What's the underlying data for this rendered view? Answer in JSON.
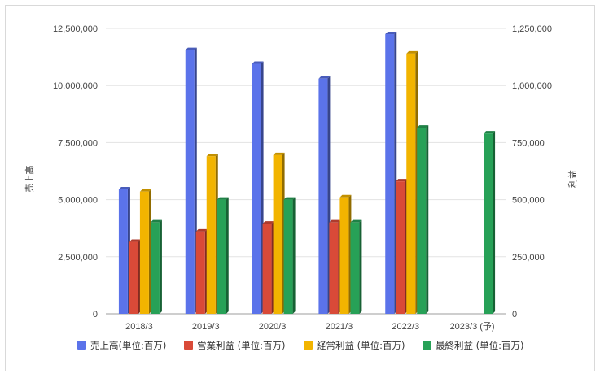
{
  "chart_data": {
    "type": "bar",
    "categories": [
      "2018/3",
      "2019/3",
      "2020/3",
      "2021/3",
      "2022/3",
      "2023/3 (予)"
    ],
    "series": [
      {
        "name": "売上高(単位:百万)",
        "axis": "left",
        "color": "#5b73ea",
        "values": [
          5450000,
          11550000,
          10950000,
          10300000,
          12250000,
          null
        ]
      },
      {
        "name": "営業利益 (単位:百万)",
        "axis": "right",
        "color": "#d94a38",
        "values": [
          315000,
          360000,
          395000,
          400000,
          580000,
          null
        ]
      },
      {
        "name": "経常利益 (単位:百万)",
        "axis": "right",
        "color": "#f2b400",
        "values": [
          535000,
          690000,
          695000,
          510000,
          1140000,
          null
        ]
      },
      {
        "name": "最終利益 (単位:百万)",
        "axis": "right",
        "color": "#27a157",
        "values": [
          400000,
          500000,
          500000,
          400000,
          815000,
          790000
        ]
      }
    ],
    "left_axis": {
      "label": "売上高",
      "ylim": [
        0,
        12500000
      ],
      "ticks": [
        "0",
        "2,500,000",
        "5,000,000",
        "7,500,000",
        "10,000,000",
        "12,500,000"
      ]
    },
    "right_axis": {
      "label": "利益",
      "ylim": [
        0,
        1250000
      ],
      "ticks": [
        "0",
        "250,000",
        "500,000",
        "750,000",
        "1,000,000",
        "1,250,000"
      ]
    },
    "grid": true,
    "legend_position": "bottom"
  }
}
